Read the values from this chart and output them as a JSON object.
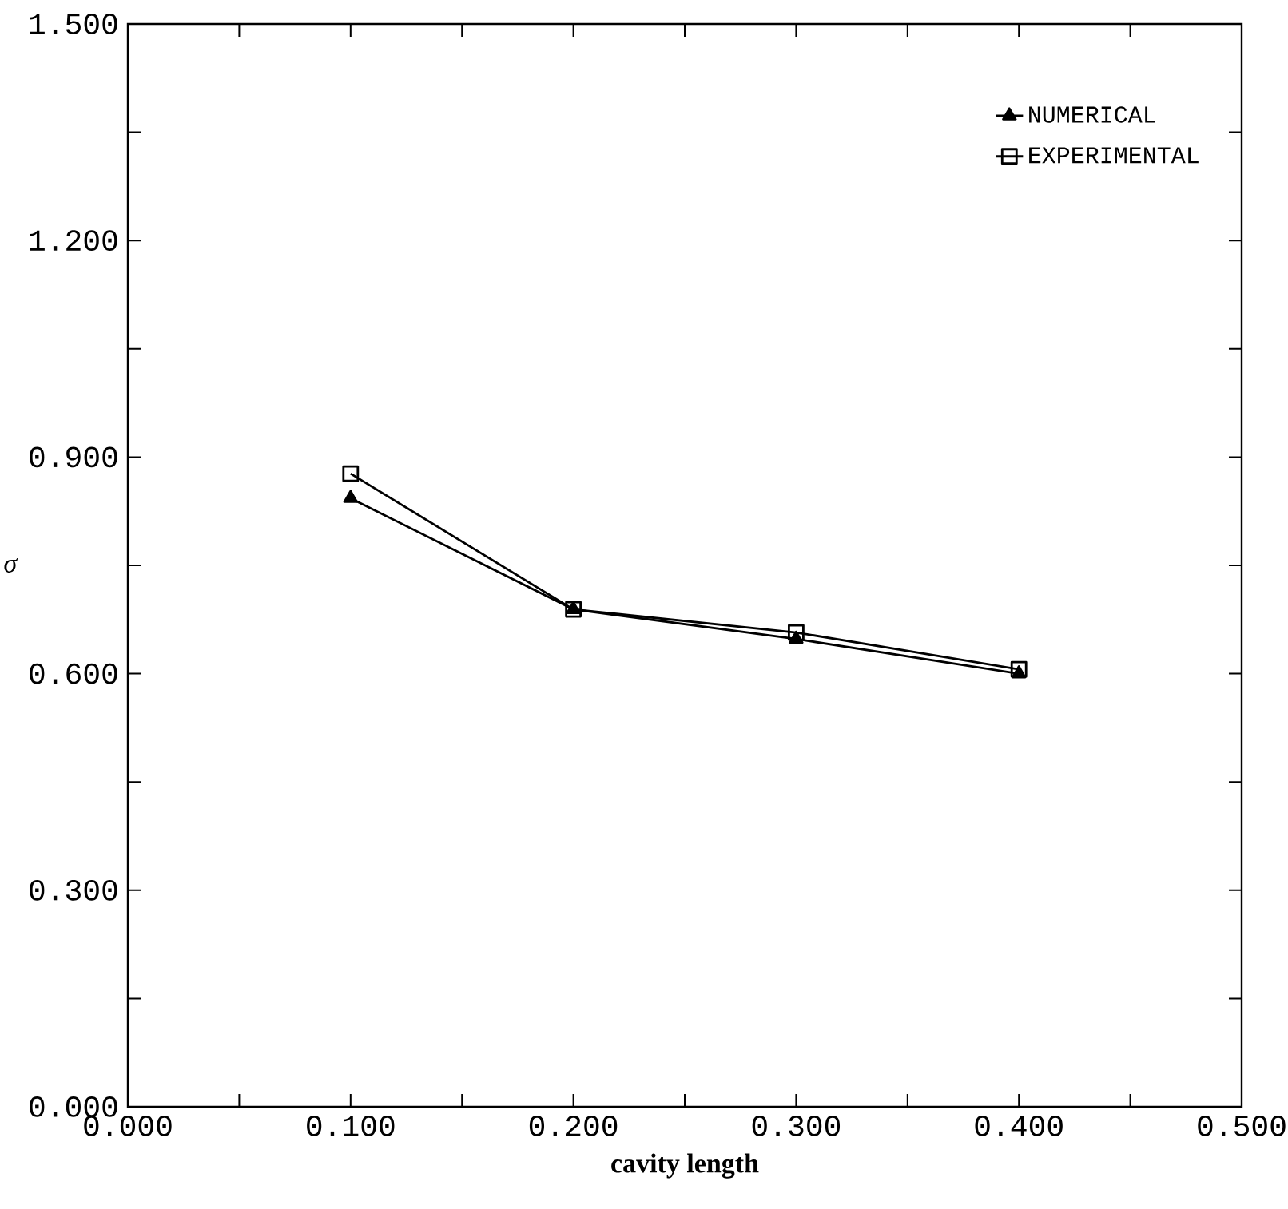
{
  "chart_data": {
    "type": "line",
    "xlabel": "cavity length",
    "ylabel": "σ",
    "x": [
      0.1,
      0.2,
      0.3,
      0.4
    ],
    "series": [
      {
        "name": "NUMERICAL",
        "color": "#000000",
        "marker": "triangle",
        "values": [
          0.843,
          0.689,
          0.648,
          0.6
        ]
      },
      {
        "name": "EXPERIMENTAL",
        "color": "#000000",
        "marker": "square",
        "values": [
          0.877,
          0.689,
          0.657,
          0.606
        ]
      }
    ],
    "xlim": [
      0,
      0.5
    ],
    "xticks": [
      {
        "value": 0,
        "label": "0.000"
      },
      {
        "value": 0.05,
        "label": null
      },
      {
        "value": 0.1,
        "label": "0.100"
      },
      {
        "value": 0.15,
        "label": null
      },
      {
        "value": 0.2,
        "label": "0.200"
      },
      {
        "value": 0.25,
        "label": null
      },
      {
        "value": 0.3,
        "label": "0.300"
      },
      {
        "value": 0.35,
        "label": null
      },
      {
        "value": 0.4,
        "label": "0.400"
      },
      {
        "value": 0.45,
        "label": null
      },
      {
        "value": 0.5,
        "label": "0.500"
      }
    ],
    "ylim": [
      0,
      1.5
    ],
    "yticks": [
      {
        "value": 0,
        "label": "0.000"
      },
      {
        "value": 0.15,
        "label": null
      },
      {
        "value": 0.3,
        "label": "0.300"
      },
      {
        "value": 0.45,
        "label": null
      },
      {
        "value": 0.6,
        "label": "0.600"
      },
      {
        "value": 0.75,
        "label": null
      },
      {
        "value": 0.9,
        "label": "0.900"
      },
      {
        "value": 1.05,
        "label": null
      },
      {
        "value": 1.2,
        "label": "1.200"
      },
      {
        "value": 1.35,
        "label": null
      },
      {
        "value": 1.5,
        "label": "1.500"
      }
    ],
    "grid": false,
    "legend": "top right",
    "line_style": "solid"
  }
}
